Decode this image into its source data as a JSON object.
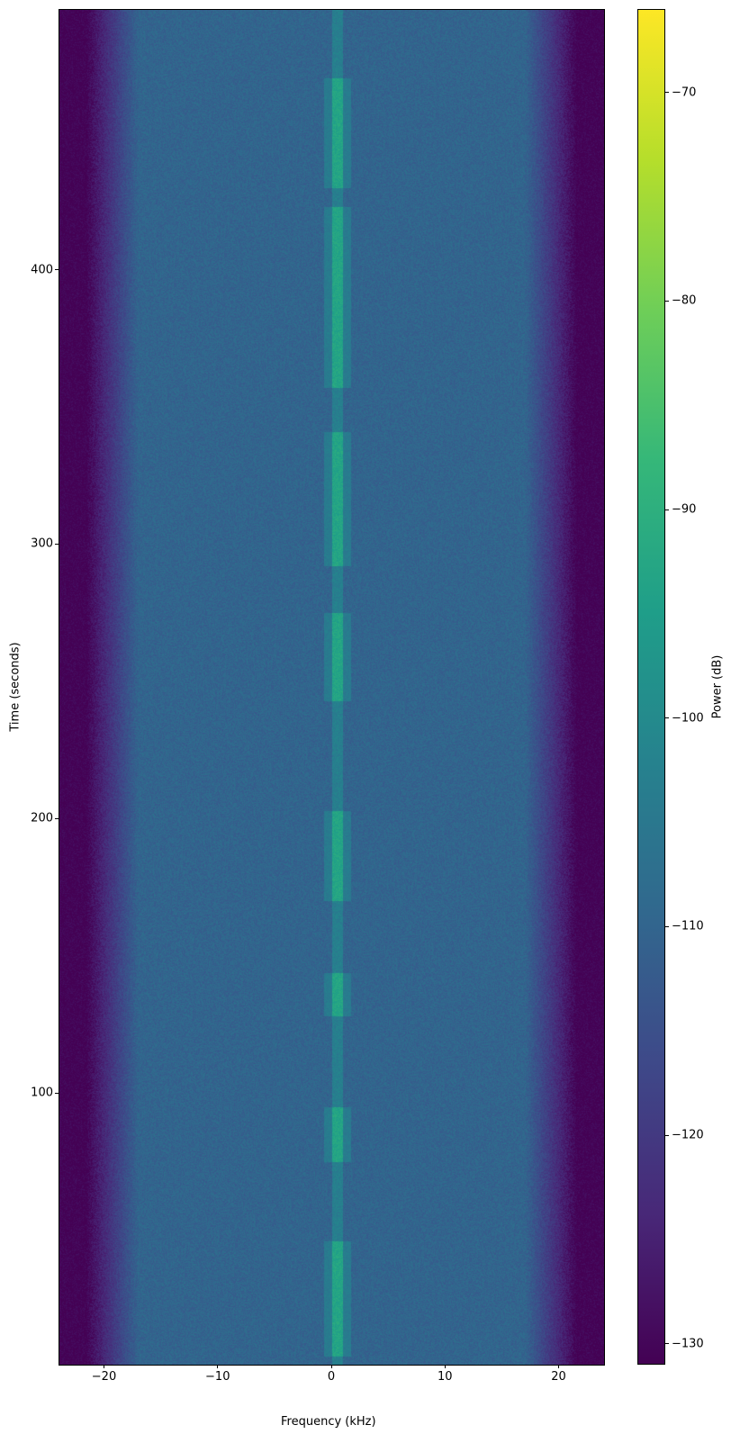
{
  "chart_data": {
    "type": "heatmap",
    "title": "",
    "xlabel": "Frequency (kHz)",
    "ylabel": "Time (seconds)",
    "xlim": [
      -24,
      24
    ],
    "ylim": [
      1,
      495
    ],
    "xticks": [
      -20,
      -10,
      0,
      10,
      20
    ],
    "xtick_labels": [
      "−20",
      "−10",
      "0",
      "10",
      "20"
    ],
    "yticks": [
      100,
      200,
      300,
      400
    ],
    "ytick_labels": [
      "100",
      "200",
      "300",
      "400"
    ],
    "colormap": "viridis",
    "colorbar": {
      "label": "Power (dB)",
      "range": [
        -131,
        -66
      ],
      "ticks": [
        -70,
        -80,
        -90,
        -100,
        -110,
        -120,
        -130
      ],
      "tick_labels": [
        "−70",
        "−80",
        "−90",
        "−100",
        "−110",
        "−120",
        "−130"
      ]
    },
    "noise_floor_db": -110,
    "edge_rolloff_kHz": [
      -21,
      21
    ],
    "out_of_band_db": -131,
    "carrier": {
      "frequency_kHz": 0.5,
      "peak_power_db": -95,
      "active_segments_s": [
        [
          4,
          46
        ],
        [
          75,
          95
        ],
        [
          128,
          144
        ],
        [
          170,
          203
        ],
        [
          243,
          275
        ],
        [
          292,
          341
        ],
        [
          357,
          423
        ],
        [
          430,
          470
        ]
      ]
    }
  }
}
